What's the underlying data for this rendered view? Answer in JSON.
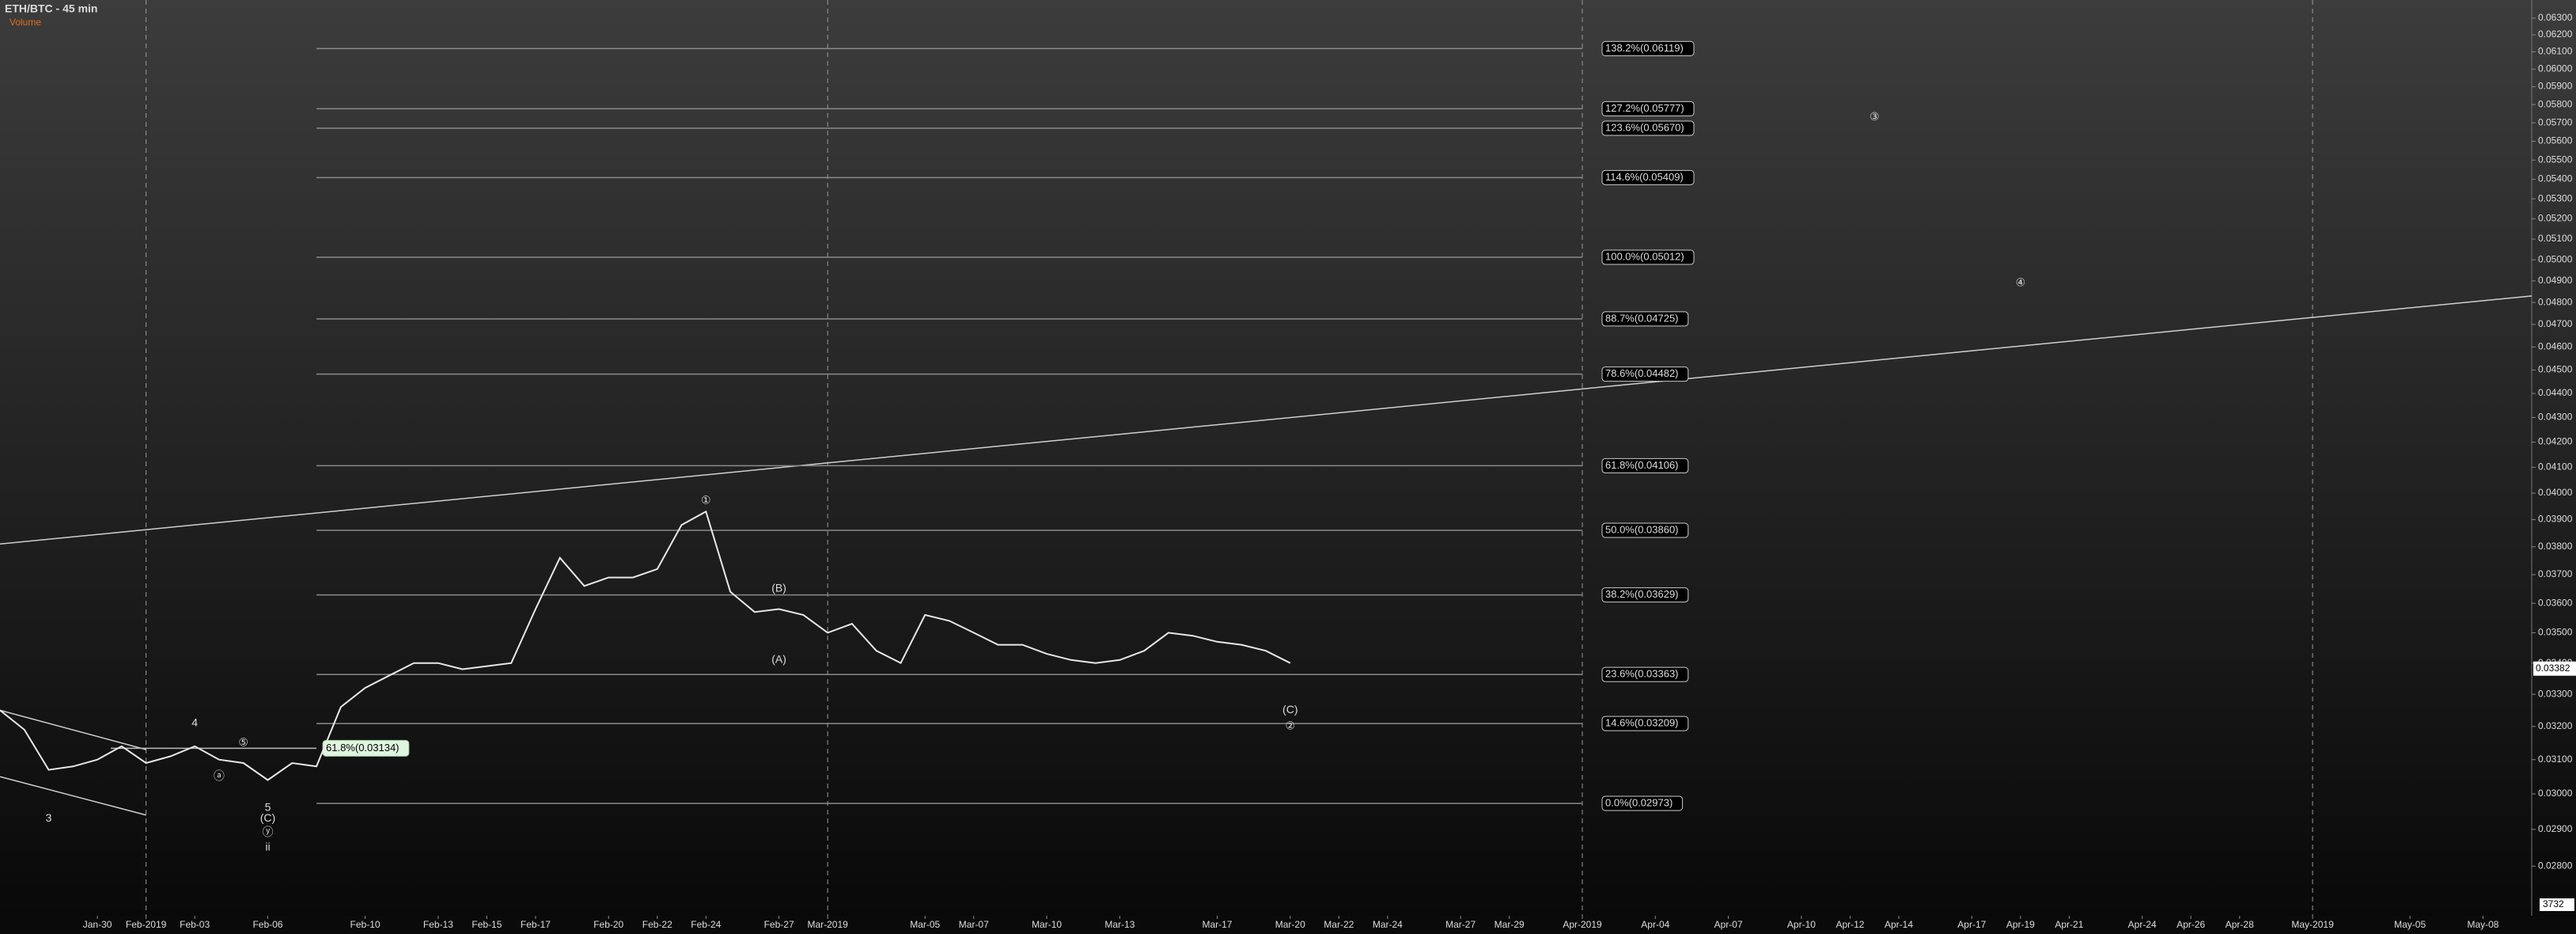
{
  "chart_data": {
    "type": "line",
    "title": "ETH/BTC - 45 min",
    "subtitle": "Volume",
    "yscale": "log",
    "ylim": [
      0.0267,
      0.0641
    ],
    "yticks": [
      {
        "value": 0.063,
        "label": "0.06300"
      },
      {
        "value": 0.062,
        "label": "0.06200"
      },
      {
        "value": 0.061,
        "label": "0.06100"
      },
      {
        "value": 0.06,
        "label": "0.06000"
      },
      {
        "value": 0.059,
        "label": "0.05900"
      },
      {
        "value": 0.058,
        "label": "0.05800"
      },
      {
        "value": 0.057,
        "label": "0.05700"
      },
      {
        "value": 0.056,
        "label": "0.05600"
      },
      {
        "value": 0.055,
        "label": "0.05500"
      },
      {
        "value": 0.054,
        "label": "0.05400"
      },
      {
        "value": 0.053,
        "label": "0.05300"
      },
      {
        "value": 0.052,
        "label": "0.05200"
      },
      {
        "value": 0.051,
        "label": "0.05100"
      },
      {
        "value": 0.05,
        "label": "0.05000"
      },
      {
        "value": 0.049,
        "label": "0.04900"
      },
      {
        "value": 0.048,
        "label": "0.04800"
      },
      {
        "value": 0.047,
        "label": "0.04700"
      },
      {
        "value": 0.046,
        "label": "0.04600"
      },
      {
        "value": 0.045,
        "label": "0.04500"
      },
      {
        "value": 0.044,
        "label": "0.04400"
      },
      {
        "value": 0.043,
        "label": "0.04300"
      },
      {
        "value": 0.042,
        "label": "0.04200"
      },
      {
        "value": 0.041,
        "label": "0.04100"
      },
      {
        "value": 0.04,
        "label": "0.04000"
      },
      {
        "value": 0.039,
        "label": "0.03900"
      },
      {
        "value": 0.038,
        "label": "0.03800"
      },
      {
        "value": 0.037,
        "label": "0.03700"
      },
      {
        "value": 0.036,
        "label": "0.03600"
      },
      {
        "value": 0.035,
        "label": "0.03500"
      },
      {
        "value": 0.034,
        "label": "0.03400"
      },
      {
        "value": 0.033,
        "label": "0.03300"
      },
      {
        "value": 0.032,
        "label": "0.03200"
      },
      {
        "value": 0.031,
        "label": "0.03100"
      },
      {
        "value": 0.03,
        "label": "0.03000"
      },
      {
        "value": 0.029,
        "label": "0.02900"
      },
      {
        "value": 0.028,
        "label": "0.02800"
      }
    ],
    "xlim": [
      "2019-01-26",
      "2019-05-10"
    ],
    "xticks": [
      {
        "value": "2019-01-30",
        "label": "Jan-30"
      },
      {
        "value": "2019-02-01",
        "label": "Feb-2019"
      },
      {
        "value": "2019-02-03",
        "label": "Feb-03"
      },
      {
        "value": "2019-02-06",
        "label": "Feb-06"
      },
      {
        "value": "2019-02-10",
        "label": "Feb-10"
      },
      {
        "value": "2019-02-13",
        "label": "Feb-13"
      },
      {
        "value": "2019-02-15",
        "label": "Feb-15"
      },
      {
        "value": "2019-02-17",
        "label": "Feb-17"
      },
      {
        "value": "2019-02-20",
        "label": "Feb-20"
      },
      {
        "value": "2019-02-22",
        "label": "Feb-22"
      },
      {
        "value": "2019-02-24",
        "label": "Feb-24"
      },
      {
        "value": "2019-02-27",
        "label": "Feb-27"
      },
      {
        "value": "2019-03-01",
        "label": "Mar-2019"
      },
      {
        "value": "2019-03-05",
        "label": "Mar-05"
      },
      {
        "value": "2019-03-07",
        "label": "Mar-07"
      },
      {
        "value": "2019-03-10",
        "label": "Mar-10"
      },
      {
        "value": "2019-03-13",
        "label": "Mar-13"
      },
      {
        "value": "2019-03-17",
        "label": "Mar-17"
      },
      {
        "value": "2019-03-20",
        "label": "Mar-20"
      },
      {
        "value": "2019-03-22",
        "label": "Mar-22"
      },
      {
        "value": "2019-03-24",
        "label": "Mar-24"
      },
      {
        "value": "2019-03-27",
        "label": "Mar-27"
      },
      {
        "value": "2019-03-29",
        "label": "Mar-29"
      },
      {
        "value": "2019-04-01",
        "label": "Apr-2019"
      },
      {
        "value": "2019-04-04",
        "label": "Apr-04"
      },
      {
        "value": "2019-04-07",
        "label": "Apr-07"
      },
      {
        "value": "2019-04-10",
        "label": "Apr-10"
      },
      {
        "value": "2019-04-12",
        "label": "Apr-12"
      },
      {
        "value": "2019-04-14",
        "label": "Apr-14"
      },
      {
        "value": "2019-04-17",
        "label": "Apr-17"
      },
      {
        "value": "2019-04-19",
        "label": "Apr-19"
      },
      {
        "value": "2019-04-21",
        "label": "Apr-21"
      },
      {
        "value": "2019-04-24",
        "label": "Apr-24"
      },
      {
        "value": "2019-04-26",
        "label": "Apr-26"
      },
      {
        "value": "2019-04-28",
        "label": "Apr-28"
      },
      {
        "value": "2019-05-01",
        "label": "May-2019"
      },
      {
        "value": "2019-05-05",
        "label": "May-05"
      },
      {
        "value": "2019-05-08",
        "label": "May-08"
      }
    ],
    "color": "#e8e8e8",
    "x": [
      "2019-01-26",
      "2019-01-27",
      "2019-01-28",
      "2019-01-29",
      "2019-01-30",
      "2019-01-31",
      "2019-02-01",
      "2019-02-02",
      "2019-02-03",
      "2019-02-04",
      "2019-02-05",
      "2019-02-06",
      "2019-02-07",
      "2019-02-08",
      "2019-02-09",
      "2019-02-10",
      "2019-02-11",
      "2019-02-12",
      "2019-02-13",
      "2019-02-14",
      "2019-02-15",
      "2019-02-16",
      "2019-02-17",
      "2019-02-18",
      "2019-02-19",
      "2019-02-20",
      "2019-02-21",
      "2019-02-22",
      "2019-02-23",
      "2019-02-24",
      "2019-02-25",
      "2019-02-26",
      "2019-02-27",
      "2019-02-28",
      "2019-03-01",
      "2019-03-02",
      "2019-03-03",
      "2019-03-04",
      "2019-03-05",
      "2019-03-06",
      "2019-03-07",
      "2019-03-08",
      "2019-03-09",
      "2019-03-10",
      "2019-03-11",
      "2019-03-12",
      "2019-03-13",
      "2019-03-14",
      "2019-03-15",
      "2019-03-16",
      "2019-03-17",
      "2019-03-18",
      "2019-03-19",
      "2019-03-20"
    ],
    "values": [
      0.0325,
      0.0319,
      0.0307,
      0.0308,
      0.031,
      0.0314,
      0.0309,
      0.0311,
      0.0314,
      0.031,
      0.0309,
      0.0304,
      0.0309,
      0.0308,
      0.0326,
      0.0332,
      0.0336,
      0.034,
      0.034,
      0.0338,
      0.0339,
      0.034,
      0.0358,
      0.0376,
      0.0366,
      0.0369,
      0.0369,
      0.0372,
      0.0388,
      0.0393,
      0.0364,
      0.0357,
      0.0358,
      0.0356,
      0.035,
      0.0353,
      0.0344,
      0.034,
      0.0356,
      0.0354,
      0.035,
      0.0346,
      0.0346,
      0.0343,
      0.0341,
      0.034,
      0.0341,
      0.0344,
      0.035,
      0.0349,
      0.0347,
      0.0346,
      0.0344,
      0.034
    ],
    "last": 0.03382,
    "volume_last": 3732,
    "fib_range": [
      "2019-02-08",
      "2019-04-01"
    ],
    "fib_levels": [
      {
        "label": "138.2%(0.06119)",
        "value": 0.06119
      },
      {
        "label": "127.2%(0.05777)",
        "value": 0.05777
      },
      {
        "label": "123.6%(0.05670)",
        "value": 0.0567
      },
      {
        "label": "114.6%(0.05409)",
        "value": 0.05409
      },
      {
        "label": "100.0%(0.05012)",
        "value": 0.05012
      },
      {
        "label": "88.7%(0.04725)",
        "value": 0.04725
      },
      {
        "label": "78.6%(0.04482)",
        "value": 0.04482
      },
      {
        "label": "61.8%(0.04106)",
        "value": 0.04106
      },
      {
        "label": "50.0%(0.03860)",
        "value": 0.0386
      },
      {
        "label": "38.2%(0.03629)",
        "value": 0.03629
      },
      {
        "label": "23.6%(0.03363)",
        "value": 0.03363
      },
      {
        "label": "14.6%(0.03209)",
        "value": 0.03209
      },
      {
        "label": "0.0%(0.02973)",
        "value": 0.02973
      }
    ],
    "extra_level": {
      "label": "61.8%(0.03134)",
      "value": 0.03134
    },
    "trendlines": [
      {
        "x": [
          "2019-01-26",
          "2019-05-10"
        ],
        "values": [
          0.0381,
          0.0483
        ]
      },
      {
        "x": [
          "2019-01-26",
          "2019-02-01"
        ],
        "values": [
          0.0325,
          0.0313
        ]
      },
      {
        "x": [
          "2019-01-26",
          "2019-02-01"
        ],
        "values": [
          0.0305,
          0.0294
        ]
      }
    ],
    "annotations": [
      {
        "text": "①",
        "x": "2019-02-24",
        "y": 0.0397
      },
      {
        "text": "(B)",
        "x": "2019-02-27",
        "y": 0.0365
      },
      {
        "text": "(A)",
        "x": "2019-02-27",
        "y": 0.0341
      },
      {
        "text": "(C)",
        "x": "2019-03-20",
        "y": 0.0325
      },
      {
        "text": "②",
        "x": "2019-03-20",
        "y": 0.032
      },
      {
        "text": "③",
        "x": "2019-04-13",
        "y": 0.0573
      },
      {
        "text": "④",
        "x": "2019-04-19",
        "y": 0.0489
      },
      {
        "text": "3",
        "x": "2019-01-28",
        "y": 0.0293
      },
      {
        "text": "4",
        "x": "2019-02-03",
        "y": 0.0321
      },
      {
        "text": "⑤",
        "x": "2019-02-05",
        "y": 0.0315
      },
      {
        "text": "ⓐ",
        "x": "2019-02-04",
        "y": 0.0305
      },
      {
        "text": "5",
        "x": "2019-02-06",
        "y": 0.0296
      },
      {
        "text": "(C)",
        "x": "2019-02-06",
        "y": 0.0293
      },
      {
        "text": "ⓨ",
        "x": "2019-02-06",
        "y": 0.0289
      },
      {
        "text": "ii",
        "x": "2019-02-06",
        "y": 0.0285
      }
    ]
  }
}
